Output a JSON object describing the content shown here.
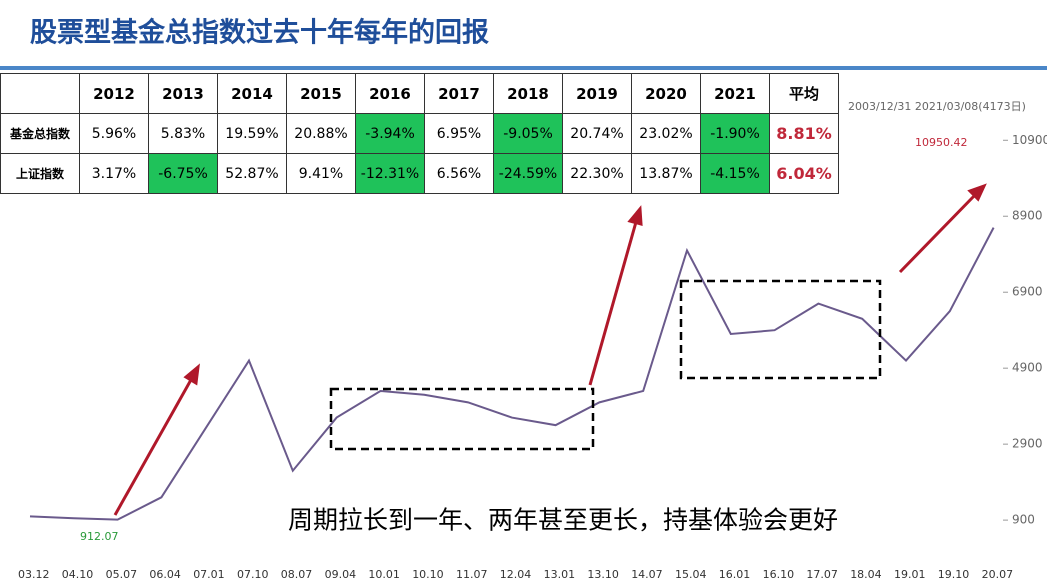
{
  "title": "股票型基金总指数过去十年每年的回报",
  "table": {
    "header": [
      "",
      "2012",
      "2013",
      "2014",
      "2015",
      "2016",
      "2017",
      "2018",
      "2019",
      "2020",
      "2021",
      "平均"
    ],
    "rows": [
      [
        "基金总指数",
        "5.96%",
        "5.83%",
        "19.59%",
        "20.88%",
        "-3.94%",
        "6.95%",
        "-9.05%",
        "20.74%",
        "23.02%",
        "-1.90%",
        "8.81%"
      ],
      [
        "上证指数",
        "3.17%",
        "-6.75%",
        "52.87%",
        "9.41%",
        "-12.31%",
        "6.56%",
        "-24.59%",
        "22.30%",
        "13.87%",
        "-4.15%",
        "6.04%"
      ]
    ]
  },
  "chart_data": {
    "type": "line",
    "date_range": "2003/12/31  2021/03/08(4173日)",
    "caption": "周期拉长到一年、两年甚至更长，持基体验会更好",
    "annotations": [
      "912.07",
      "10950.42"
    ],
    "categories": [
      "03.12",
      "04.10",
      "05.07",
      "06.04",
      "07.01",
      "07.10",
      "08.07",
      "09.04",
      "10.01",
      "10.10",
      "11.07",
      "12.04",
      "13.01",
      "13.10",
      "14.07",
      "15.04",
      "16.01",
      "16.10",
      "17.07",
      "18.04",
      "19.01",
      "19.10",
      "20.07"
    ],
    "series": [
      {
        "name": "股票型基金总指数",
        "color": "#6a5a8c",
        "values": [
          1000,
          950,
          912,
          1500,
          3300,
          5100,
          2200,
          3600,
          4300,
          4200,
          4000,
          3600,
          3400,
          4000,
          4300,
          8000,
          5800,
          5900,
          6600,
          6200,
          5100,
          6400,
          8600
        ]
      }
    ],
    "ylim": [
      -150,
      12750
    ],
    "yticks": [
      900,
      2900,
      4900,
      6900,
      8900,
      10900
    ],
    "grid": false
  }
}
